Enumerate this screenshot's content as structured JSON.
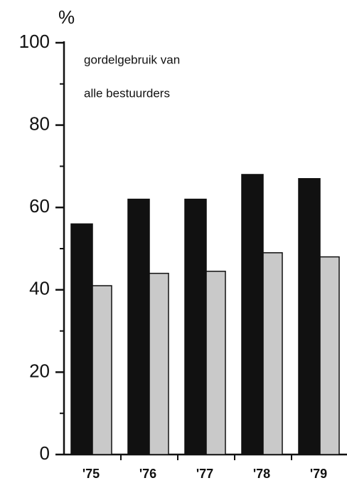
{
  "chart_data": {
    "type": "bar",
    "ylabel": "%",
    "annotations": [
      "gordelgebruik van",
      "alle bestuurders"
    ],
    "categories": [
      "'75",
      "'76",
      "'77",
      "'78",
      "'79"
    ],
    "series": [
      {
        "color": "#111111",
        "values": [
          56,
          62,
          62,
          68,
          67
        ]
      },
      {
        "color": "#c9c9c9",
        "values": [
          41,
          44,
          44.5,
          49,
          48
        ]
      }
    ],
    "ylim": [
      0,
      100
    ],
    "yticks": [
      0,
      20,
      40,
      60,
      80,
      100
    ],
    "yminorticks": [
      10,
      30,
      50,
      70,
      90
    ]
  }
}
